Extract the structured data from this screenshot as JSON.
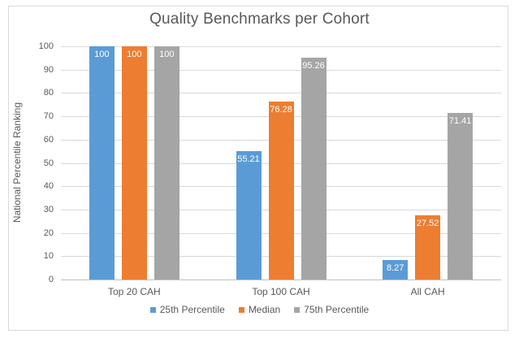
{
  "chart_data": {
    "type": "bar",
    "title": "Quality Benchmarks per Cohort",
    "ylabel": "National Percentile Ranking",
    "xlabel": "",
    "categories": [
      "Top 20 CAH",
      "Top 100 CAH",
      "All CAH"
    ],
    "series": [
      {
        "name": "25th Percentile",
        "color": "#5B9BD5",
        "values": [
          100,
          55.21,
          8.27
        ],
        "labels": [
          "100",
          "55.21",
          "8.27"
        ]
      },
      {
        "name": "Median",
        "color": "#ED7D31",
        "values": [
          100,
          76.28,
          27.52
        ],
        "labels": [
          "100",
          "76.28",
          "27.52"
        ]
      },
      {
        "name": "75th Percentile",
        "color": "#A5A5A5",
        "values": [
          100,
          95.26,
          71.41
        ],
        "labels": [
          "100",
          "95.26",
          "71.41"
        ]
      }
    ],
    "ylim": [
      0,
      100
    ],
    "yticks": [
      0,
      10,
      20,
      30,
      40,
      50,
      60,
      70,
      80,
      90,
      100
    ],
    "grid": true,
    "legend_position": "bottom",
    "data_label_color": "#FFFFFF",
    "colors": {
      "grid": "#D9D9D9",
      "axis": "#BFBFBF",
      "text": "#595959",
      "background": "#FFFFFF",
      "border": "#D9D9D9"
    }
  }
}
